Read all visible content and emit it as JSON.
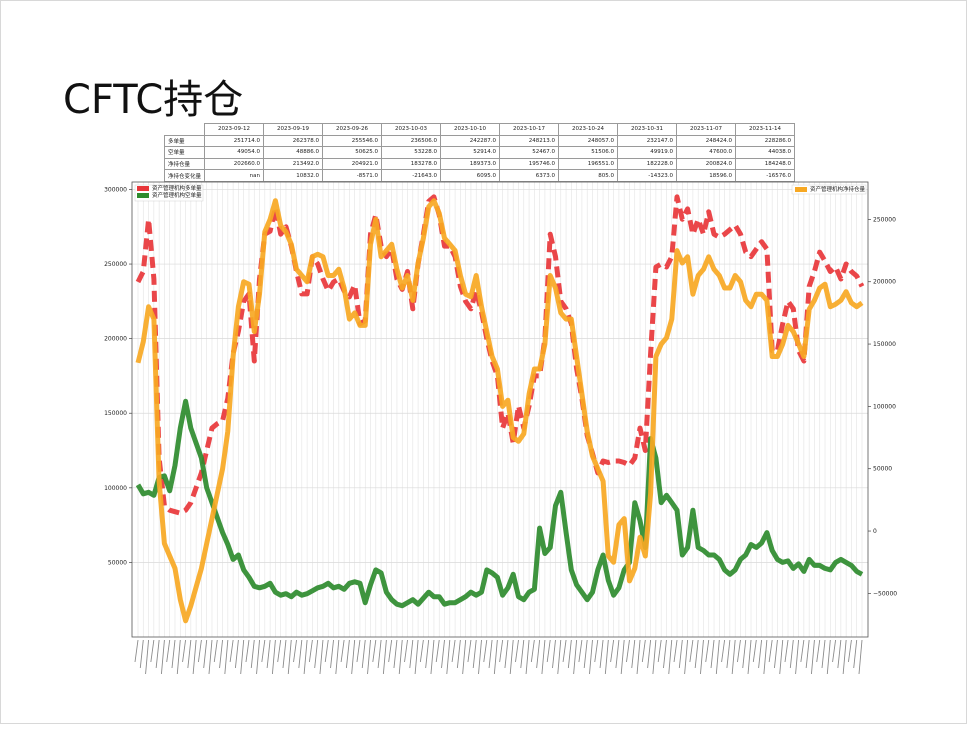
{
  "slide": {
    "title": "CFTC持仓"
  },
  "table": {
    "columns": [
      "2023-09-12",
      "2023-09-19",
      "2023-09-26",
      "2023-10-03",
      "2023-10-10",
      "2023-10-17",
      "2023-10-24",
      "2023-10-31",
      "2023-11-07",
      "2023-11-14"
    ],
    "rows": [
      {
        "label": "多单量",
        "values": [
          "251714.0",
          "262378.0",
          "255546.0",
          "236506.0",
          "242287.0",
          "248213.0",
          "248057.0",
          "232147.0",
          "248424.0",
          "228286.0"
        ]
      },
      {
        "label": "空单量",
        "values": [
          "49054.0",
          "48886.0",
          "50625.0",
          "53228.0",
          "52914.0",
          "52467.0",
          "51506.0",
          "49919.0",
          "47600.0",
          "44038.0"
        ]
      },
      {
        "label": "净持仓量",
        "values": [
          "202660.0",
          "213492.0",
          "204921.0",
          "183278.0",
          "189373.0",
          "195746.0",
          "196551.0",
          "182228.0",
          "200824.0",
          "184248.0"
        ]
      },
      {
        "label": "净持仓变化量",
        "values": [
          "nan",
          "10832.0",
          "-8571.0",
          "-21643.0",
          "6095.0",
          "6373.0",
          "805.0",
          "-14323.0",
          "18596.0",
          "-16576.0"
        ]
      }
    ]
  },
  "chart_data": {
    "type": "line",
    "legend_left": [
      "资产管理机构多单量",
      "资产管理机构空单量"
    ],
    "legend_right": [
      "资产管理机构净持仓量"
    ],
    "legend_placement": "top-left and top-right",
    "y_left": {
      "ylim": [
        0,
        305000
      ],
      "ticks": [
        50000,
        100000,
        150000,
        200000,
        250000,
        300000
      ]
    },
    "y_right": {
      "ylim": [
        -85000,
        280000
      ],
      "ticks": [
        -50000,
        0,
        50000,
        100000,
        150000,
        200000,
        250000
      ]
    },
    "grid": true,
    "x_count": 138,
    "series": [
      {
        "name": "资产管理机构多单量",
        "axis": "left",
        "color": "#e8363a",
        "style": "dashed",
        "values": [
          238000,
          245000,
          280000,
          240000,
          120000,
          88000,
          85000,
          84000,
          83000,
          85000,
          90000,
          100000,
          110000,
          125000,
          140000,
          143000,
          145000,
          160000,
          190000,
          205000,
          225000,
          230000,
          185000,
          240000,
          270000,
          272000,
          288000,
          270000,
          275000,
          262000,
          245000,
          230000,
          230000,
          255000,
          250000,
          240000,
          232000,
          238000,
          240000,
          232000,
          228000,
          236000,
          210000,
          212000,
          270000,
          283000,
          262000,
          255000,
          260000,
          240000,
          233000,
          245000,
          220000,
          250000,
          270000,
          292000,
          295000,
          283000,
          262000,
          262000,
          255000,
          235000,
          225000,
          220000,
          232000,
          218000,
          200000,
          185000,
          175000,
          140000,
          150000,
          130000,
          155000,
          140000,
          155000,
          175000,
          175000,
          200000,
          270000,
          255000,
          225000,
          220000,
          210000,
          180000,
          160000,
          135000,
          123000,
          110000,
          118000,
          117000,
          118000,
          118000,
          117000,
          115000,
          120000,
          140000,
          125000,
          190000,
          248000,
          250000,
          248000,
          255000,
          295000,
          280000,
          287000,
          270000,
          280000,
          270000,
          285000,
          270000,
          268000,
          270000,
          273000,
          276000,
          270000,
          258000,
          255000,
          260000,
          265000,
          260000,
          192000,
          192000,
          210000,
          225000,
          220000,
          192000,
          185000,
          235000,
          245000,
          258000,
          252000,
          245000,
          248000,
          240000,
          250000,
          245000,
          242000,
          235000
        ]
      },
      {
        "name": "资产管理机构空单量",
        "axis": "left",
        "color": "#2e8b2e",
        "style": "solid",
        "values": [
          102000,
          96000,
          97000,
          95000,
          107000,
          108000,
          98000,
          115000,
          140000,
          158000,
          140000,
          130000,
          120000,
          100000,
          90000,
          80000,
          70000,
          62000,
          52000,
          55000,
          45000,
          40000,
          34000,
          33000,
          34000,
          36000,
          30000,
          28000,
          29000,
          27000,
          30000,
          28000,
          29000,
          31000,
          33000,
          34000,
          36000,
          33000,
          34000,
          32000,
          36000,
          37000,
          36000,
          23000,
          35000,
          45000,
          43000,
          30000,
          25000,
          22000,
          21000,
          23000,
          25000,
          22000,
          26000,
          30000,
          27000,
          27000,
          22000,
          23000,
          23000,
          25000,
          27000,
          30000,
          28000,
          30000,
          45000,
          43000,
          40000,
          28000,
          33000,
          42000,
          27000,
          25000,
          30000,
          32000,
          73000,
          56000,
          60000,
          88000,
          97000,
          70000,
          45000,
          35000,
          30000,
          25000,
          30000,
          45000,
          55000,
          38000,
          28000,
          33000,
          45000,
          50000,
          90000,
          78000,
          60000,
          133000,
          120000,
          90000,
          95000,
          90000,
          85000,
          55000,
          60000,
          85000,
          60000,
          58000,
          55000,
          55000,
          52000,
          45000,
          42000,
          45000,
          52000,
          55000,
          62000,
          60000,
          63000,
          70000,
          58000,
          52000,
          50000,
          51000,
          46000,
          49000,
          44000,
          52000,
          48000,
          48000,
          46000,
          45000,
          50000,
          52000,
          50000,
          48000,
          44000,
          42000
        ]
      },
      {
        "name": "资产管理机构净持仓量",
        "axis": "right",
        "color": "#f7a823",
        "style": "solid",
        "values": [
          135000,
          152000,
          180000,
          170000,
          40000,
          -10000,
          -20000,
          -30000,
          -55000,
          -72000,
          -60000,
          -45000,
          -30000,
          -10000,
          10000,
          30000,
          50000,
          80000,
          140000,
          180000,
          200000,
          198000,
          160000,
          190000,
          240000,
          250000,
          265000,
          245000,
          240000,
          230000,
          210000,
          205000,
          200000,
          220000,
          222000,
          220000,
          205000,
          205000,
          210000,
          195000,
          170000,
          175000,
          165000,
          165000,
          230000,
          250000,
          220000,
          225000,
          230000,
          210000,
          195000,
          205000,
          185000,
          215000,
          235000,
          260000,
          265000,
          255000,
          235000,
          230000,
          225000,
          205000,
          190000,
          188000,
          205000,
          180000,
          160000,
          140000,
          130000,
          100000,
          105000,
          75000,
          72000,
          78000,
          110000,
          130000,
          130000,
          150000,
          205000,
          195000,
          175000,
          170000,
          170000,
          140000,
          110000,
          80000,
          60000,
          50000,
          40000,
          -20000,
          -25000,
          5000,
          10000,
          -40000,
          -30000,
          -5000,
          -20000,
          30000,
          140000,
          150000,
          155000,
          170000,
          225000,
          215000,
          220000,
          190000,
          205000,
          210000,
          220000,
          210000,
          205000,
          195000,
          195000,
          205000,
          200000,
          185000,
          180000,
          190000,
          190000,
          185000,
          140000,
          140000,
          150000,
          165000,
          160000,
          150000,
          140000,
          178000,
          185000,
          195000,
          198000,
          180000,
          182000,
          185000,
          192000,
          183000,
          180000,
          183000
        ]
      }
    ]
  }
}
